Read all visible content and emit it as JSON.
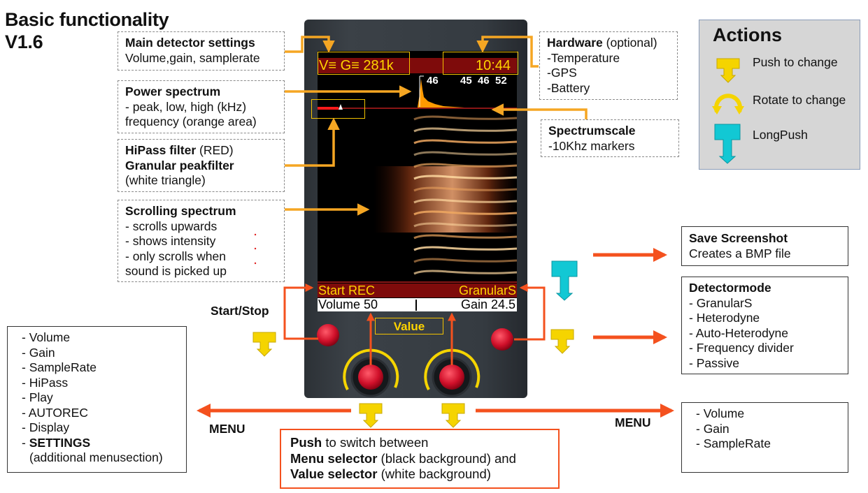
{
  "title": {
    "line1": "Basic functionality",
    "line2": "V1.6"
  },
  "callouts": {
    "main_settings": {
      "bold": "Main detector settings",
      "text": "Volume,gain, samplerate"
    },
    "power_spectrum": {
      "bold": "Power spectrum",
      "lines": [
        "- peak, low, high (kHz)",
        "frequency (orange area)"
      ]
    },
    "hipass": {
      "bold1": "HiPass filter",
      "rest1": " (RED)",
      "bold2": "Granular peakfilter",
      "rest2": "(white triangle)"
    },
    "scrolling": {
      "bold": "Scrolling spectrum",
      "lines": [
        "- scrolls upwards",
        "- shows intensity",
        "- only scrolls when",
        "sound is picked up"
      ]
    },
    "hardware": {
      "bold": "Hardware",
      "rest": " (optional)",
      "lines": [
        "-Temperature",
        "-GPS",
        "-Battery"
      ]
    },
    "spectrumscale": {
      "bold": "Spectrumscale",
      "lines": [
        "-10Khz markers"
      ]
    }
  },
  "actions": {
    "title": "Actions",
    "items": [
      {
        "label": "Push to change",
        "icon": "push-icon",
        "color": "#f5d400"
      },
      {
        "label": "Rotate to change",
        "icon": "rotate-icon",
        "color": "#f5d400"
      },
      {
        "label": "LongPush",
        "icon": "longpush-icon",
        "color": "#12c8d4"
      }
    ]
  },
  "screen": {
    "top_left": "V≡ G≡ 281k",
    "top_right": "10:44",
    "peak": "46",
    "low_mid_high": "45  46  52",
    "menu_left": "Start REC",
    "menu_right": "GranularS",
    "value_left": "Volume 50",
    "value_right": "Gain 24.5"
  },
  "device": {
    "value_label": "Value",
    "start_stop": "Start/Stop"
  },
  "boxes": {
    "screenshot": {
      "bold": "Save Screenshot",
      "lines": [
        "Creates a BMP file"
      ]
    },
    "detectormode": {
      "bold": "Detectormode",
      "lines": [
        "- GranularS",
        "- Heterodyne",
        "- Auto-Heterodyne",
        "- Frequency divider",
        "- Passive"
      ]
    },
    "left_menu": {
      "lines": [
        "- Volume",
        "- Gain",
        "- SampleRate",
        "- HiPass",
        "- Play",
        "- AUTOREC",
        "- Display"
      ],
      "settings_prefix": "- ",
      "settings_bold": "SETTINGS",
      "settings_sub": "(additional menusection)"
    },
    "right_menu": {
      "lines": [
        "- Volume",
        "- Gain",
        "- SampleRate"
      ]
    },
    "push_switch": {
      "b1": "Push",
      "r1": " to switch between",
      "b2": "Menu selector",
      "r2": " (black background) and",
      "b3": "Value selector",
      "r3": " (white background)"
    }
  },
  "menu_labels": {
    "left": "MENU",
    "right": "MENU"
  },
  "colors": {
    "callout_arrow": "#f5a623",
    "action_arrow": "#f4511e",
    "push": "#f5d400",
    "longpush": "#12c8d4",
    "screen_text": "#ffd400",
    "bar_red": "#7e0b0b"
  }
}
